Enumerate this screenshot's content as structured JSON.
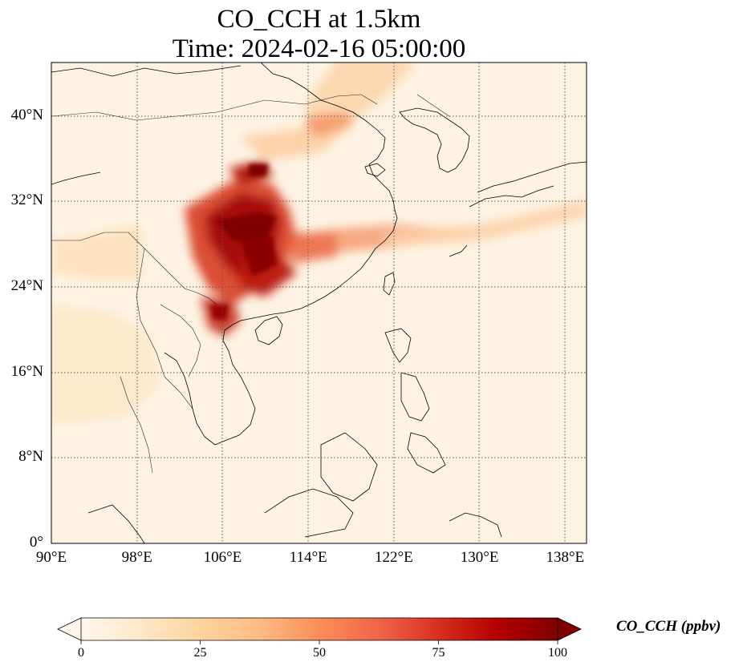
{
  "title_line1": "CO_CCH at 1.5km",
  "title_line2": "Time: 2024-02-16 05:00:00",
  "map": {
    "lon_range": [
      90,
      140
    ],
    "lat_range": [
      0,
      45
    ],
    "lat_ticks": [
      {
        "value": 0,
        "label": "0°"
      },
      {
        "value": 8,
        "label": "8°N"
      },
      {
        "value": 16,
        "label": "16°N"
      },
      {
        "value": 24,
        "label": "24°N"
      },
      {
        "value": 32,
        "label": "32°N"
      },
      {
        "value": 40,
        "label": "40°N"
      }
    ],
    "lon_ticks": [
      {
        "value": 90,
        "label": "90°E"
      },
      {
        "value": 98,
        "label": "98°E"
      },
      {
        "value": 106,
        "label": "106°E"
      },
      {
        "value": 114,
        "label": "114°E"
      },
      {
        "value": 122,
        "label": "122°E"
      },
      {
        "value": 130,
        "label": "130°E"
      },
      {
        "value": 138,
        "label": "138°E"
      }
    ],
    "gridlines": true
  },
  "colorbar": {
    "label": "CO_CCH (ppbv)",
    "range": [
      0,
      100
    ],
    "ticks": [
      "0",
      "25",
      "50",
      "75",
      "100"
    ],
    "colormap": "OrRd",
    "colors": [
      "#fff7ec",
      "#fee8c8",
      "#fdd49e",
      "#fdbb84",
      "#fc8d59",
      "#ef6548",
      "#d7301f",
      "#b30000",
      "#7f0000"
    ],
    "extend": "both"
  }
}
